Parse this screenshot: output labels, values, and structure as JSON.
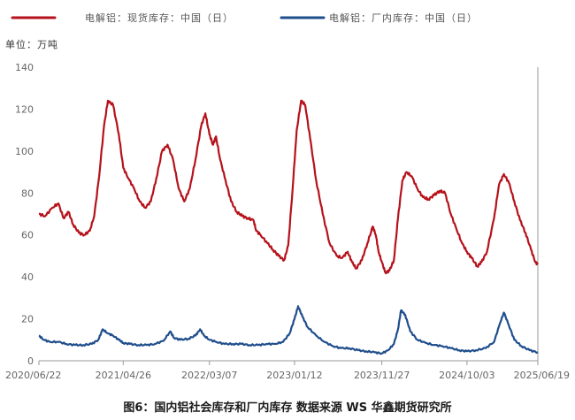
{
  "caption": "图6：国内铝社会库存和厂内库存   数据来源 WS 华鑫期货研究所",
  "chart_data": {
    "type": "line",
    "unit_label": "单位：万吨",
    "ylim": [
      0,
      140
    ],
    "y_ticks": [
      0,
      20,
      40,
      60,
      80,
      100,
      120,
      140
    ],
    "x_ticks": [
      "2020/06/22",
      "2021/04/26",
      "2022/03/07",
      "2023/01/12",
      "2023/11/27",
      "2024/10/03",
      "2025/06/19"
    ],
    "xlim": [
      "2020/06/22",
      "2025/06/19"
    ],
    "grid": false,
    "legend_position": "top-left",
    "series": [
      {
        "name": "电解铝：现货库存：中国（日）",
        "color": "#b5121b",
        "points": [
          [
            "2020/06/22",
            70
          ],
          [
            "2020/07/15",
            69
          ],
          [
            "2020/08/10",
            73
          ],
          [
            "2020/09/01",
            75
          ],
          [
            "2020/09/20",
            68
          ],
          [
            "2020/10/08",
            71
          ],
          [
            "2020/10/25",
            65
          ],
          [
            "2020/11/15",
            61
          ],
          [
            "2020/12/05",
            60
          ],
          [
            "2020/12/25",
            62
          ],
          [
            "2021/01/10",
            69
          ],
          [
            "2021/01/28",
            88
          ],
          [
            "2021/02/15",
            112
          ],
          [
            "2021/03/01",
            124
          ],
          [
            "2021/03/20",
            122
          ],
          [
            "2021/04/10",
            108
          ],
          [
            "2021/04/26",
            92
          ],
          [
            "2021/05/15",
            87
          ],
          [
            "2021/06/05",
            82
          ],
          [
            "2021/06/25",
            76
          ],
          [
            "2021/07/15",
            73
          ],
          [
            "2021/08/05",
            76
          ],
          [
            "2021/08/25",
            87
          ],
          [
            "2021/09/15",
            100
          ],
          [
            "2021/10/05",
            103
          ],
          [
            "2021/10/25",
            96
          ],
          [
            "2021/11/15",
            82
          ],
          [
            "2021/12/05",
            76
          ],
          [
            "2021/12/25",
            82
          ],
          [
            "2022/01/15",
            96
          ],
          [
            "2022/02/05",
            112
          ],
          [
            "2022/02/20",
            118
          ],
          [
            "2022/03/07",
            108
          ],
          [
            "2022/03/20",
            103
          ],
          [
            "2022/03/31",
            107
          ],
          [
            "2022/04/15",
            96
          ],
          [
            "2022/05/05",
            86
          ],
          [
            "2022/05/25",
            76
          ],
          [
            "2022/06/15",
            71
          ],
          [
            "2022/07/05",
            69
          ],
          [
            "2022/07/25",
            68
          ],
          [
            "2022/08/15",
            67
          ],
          [
            "2022/08/25",
            62
          ],
          [
            "2022/09/10",
            60
          ],
          [
            "2022/10/05",
            56
          ],
          [
            "2022/10/25",
            53
          ],
          [
            "2022/11/15",
            50
          ],
          [
            "2022/12/05",
            48
          ],
          [
            "2022/12/20",
            55
          ],
          [
            "2023/01/05",
            82
          ],
          [
            "2023/01/20",
            110
          ],
          [
            "2023/02/05",
            124
          ],
          [
            "2023/02/20",
            122
          ],
          [
            "2023/03/10",
            106
          ],
          [
            "2023/04/01",
            86
          ],
          [
            "2023/04/25",
            70
          ],
          [
            "2023/05/20",
            56
          ],
          [
            "2023/06/15",
            50
          ],
          [
            "2023/07/05",
            49
          ],
          [
            "2023/07/25",
            52
          ],
          [
            "2023/08/10",
            47
          ],
          [
            "2023/08/25",
            44
          ],
          [
            "2023/09/15",
            48
          ],
          [
            "2023/10/05",
            56
          ],
          [
            "2023/10/25",
            64
          ],
          [
            "2023/11/05",
            60
          ],
          [
            "2023/11/15",
            52
          ],
          [
            "2023/11/27",
            47
          ],
          [
            "2023/12/10",
            42
          ],
          [
            "2023/12/25",
            43
          ],
          [
            "2024/01/10",
            48
          ],
          [
            "2024/01/25",
            68
          ],
          [
            "2024/02/10",
            86
          ],
          [
            "2024/02/25",
            90
          ],
          [
            "2024/03/15",
            88
          ],
          [
            "2024/04/05",
            82
          ],
          [
            "2024/04/25",
            78
          ],
          [
            "2024/05/15",
            77
          ],
          [
            "2024/06/05",
            79
          ],
          [
            "2024/06/25",
            81
          ],
          [
            "2024/07/15",
            80
          ],
          [
            "2024/08/05",
            70
          ],
          [
            "2024/08/25",
            63
          ],
          [
            "2024/09/15",
            56
          ],
          [
            "2024/10/03",
            52
          ],
          [
            "2024/10/20",
            49
          ],
          [
            "2024/11/10",
            45
          ],
          [
            "2024/11/25",
            47
          ],
          [
            "2024/12/15",
            52
          ],
          [
            "2025/01/10",
            68
          ],
          [
            "2025/01/28",
            84
          ],
          [
            "2025/02/15",
            89
          ],
          [
            "2025/03/05",
            85
          ],
          [
            "2025/03/25",
            76
          ],
          [
            "2025/04/15",
            67
          ],
          [
            "2025/05/05",
            61
          ],
          [
            "2025/05/25",
            53
          ],
          [
            "2025/06/10",
            47
          ],
          [
            "2025/06/19",
            46
          ]
        ]
      },
      {
        "name": "电解铝：厂内库存：中国（日）",
        "color": "#1f4e8c",
        "points": [
          [
            "2020/06/22",
            12
          ],
          [
            "2020/07/10",
            10
          ],
          [
            "2020/08/01",
            9
          ],
          [
            "2020/09/01",
            9
          ],
          [
            "2020/10/01",
            8
          ],
          [
            "2020/11/01",
            7.5
          ],
          [
            "2020/12/01",
            7.5
          ],
          [
            "2021/01/01",
            8
          ],
          [
            "2021/01/25",
            10
          ],
          [
            "2021/02/10",
            15
          ],
          [
            "2021/03/01",
            13
          ],
          [
            "2021/03/20",
            12
          ],
          [
            "2021/04/10",
            10
          ],
          [
            "2021/04/26",
            8.5
          ],
          [
            "2021/05/20",
            8
          ],
          [
            "2021/06/20",
            7.5
          ],
          [
            "2021/07/20",
            7.5
          ],
          [
            "2021/08/20",
            8
          ],
          [
            "2021/09/20",
            9.5
          ],
          [
            "2021/10/15",
            14
          ],
          [
            "2021/10/28",
            11
          ],
          [
            "2021/11/20",
            10
          ],
          [
            "2021/12/20",
            10.5
          ],
          [
            "2022/01/15",
            12
          ],
          [
            "2022/02/01",
            15
          ],
          [
            "2022/02/15",
            12
          ],
          [
            "2022/03/07",
            10
          ],
          [
            "2022/04/01",
            9
          ],
          [
            "2022/05/01",
            8
          ],
          [
            "2022/06/01",
            8
          ],
          [
            "2022/07/01",
            8
          ],
          [
            "2022/08/01",
            7.5
          ],
          [
            "2022/09/01",
            7.5
          ],
          [
            "2022/10/01",
            8
          ],
          [
            "2022/11/01",
            8
          ],
          [
            "2022/12/01",
            9
          ],
          [
            "2022/12/25",
            13
          ],
          [
            "2023/01/12",
            20
          ],
          [
            "2023/01/25",
            26
          ],
          [
            "2023/02/10",
            21
          ],
          [
            "2023/03/01",
            16
          ],
          [
            "2023/04/01",
            12
          ],
          [
            "2023/05/01",
            9
          ],
          [
            "2023/06/01",
            7
          ],
          [
            "2023/07/01",
            6
          ],
          [
            "2023/08/01",
            6
          ],
          [
            "2023/09/01",
            5
          ],
          [
            "2023/10/01",
            4.5
          ],
          [
            "2023/11/01",
            4
          ],
          [
            "2023/11/27",
            3.5
          ],
          [
            "2023/12/20",
            5
          ],
          [
            "2024/01/10",
            8
          ],
          [
            "2024/01/25",
            15
          ],
          [
            "2024/02/05",
            24
          ],
          [
            "2024/02/20",
            22
          ],
          [
            "2024/03/10",
            14
          ],
          [
            "2024/04/05",
            10
          ],
          [
            "2024/05/05",
            8.5
          ],
          [
            "2024/06/05",
            7.5
          ],
          [
            "2024/07/05",
            7
          ],
          [
            "2024/08/05",
            6
          ],
          [
            "2024/09/05",
            5
          ],
          [
            "2024/10/03",
            4.5
          ],
          [
            "2024/11/05",
            5
          ],
          [
            "2024/12/10",
            6
          ],
          [
            "2025/01/10",
            9
          ],
          [
            "2025/02/01",
            18
          ],
          [
            "2025/02/15",
            23
          ],
          [
            "2025/03/05",
            17
          ],
          [
            "2025/03/25",
            10
          ],
          [
            "2025/04/20",
            7
          ],
          [
            "2025/05/20",
            5
          ],
          [
            "2025/06/19",
            4
          ]
        ]
      }
    ]
  },
  "colors": {
    "axis": "#999999",
    "aluminum_spot_inventory": "#b5121b",
    "aluminum_plant_inventory": "#1f4e8c"
  }
}
